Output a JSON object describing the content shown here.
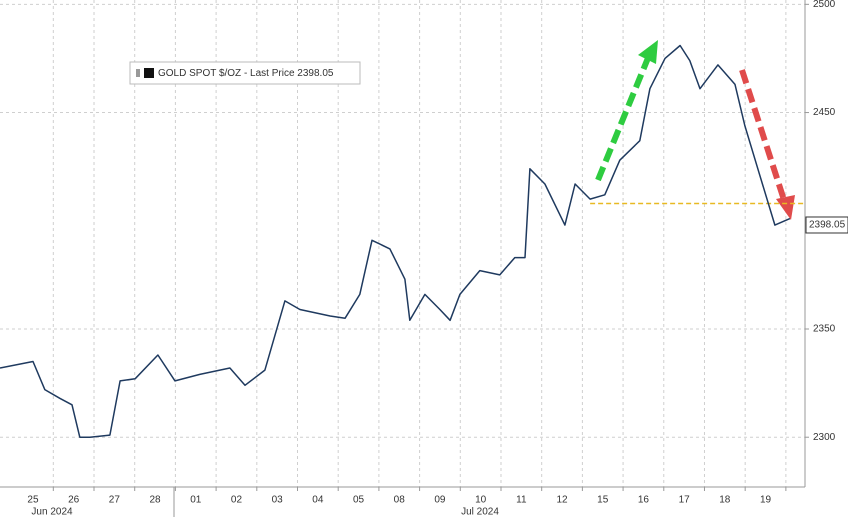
{
  "chart_data": {
    "type": "line",
    "x": [
      -0.81,
      0,
      0.29,
      0.66,
      0.96,
      1.15,
      1.4,
      1.89,
      2.14,
      2.51,
      3.07,
      3.49,
      4.1,
      4.84,
      5.21,
      5.7,
      6.19,
      6.56,
      7.3,
      7.67,
      8.03,
      8.33,
      8.77,
      9.14,
      9.26,
      9.63,
      10.0,
      10.25,
      10.49,
      10.98,
      11.47,
      11.84,
      12.09,
      12.21,
      12.58,
      13.07,
      13.32,
      13.69,
      14.05,
      14.42,
      14.91,
      15.16,
      15.53,
      15.9,
      16.14,
      16.39,
      16.83,
      17.25,
      17.49,
      17.86,
      18.23,
      18.6
    ],
    "series": [
      {
        "name": "GOLD SPOT $/OZ - Last Price 2398.05",
        "color": "#1f3a5f",
        "values": [
          2332,
          2335,
          2322,
          2318,
          2315,
          2300,
          2300,
          2301,
          2326,
          2327,
          2338,
          2326,
          2329,
          2332,
          2324,
          2331,
          2363,
          2359,
          2356,
          2355,
          2366,
          2391,
          2387,
          2373,
          2354,
          2366,
          2359,
          2354,
          2366,
          2377,
          2375,
          2383,
          2383,
          2424,
          2417,
          2398,
          2417,
          2410,
          2412,
          2428,
          2437,
          2461,
          2475,
          2481,
          2474,
          2461,
          2472,
          2463,
          2444,
          2421,
          2398,
          2401
        ]
      }
    ],
    "xlim": [
      -0.81,
      18.97
    ],
    "xticks": [
      {
        "value": 0,
        "label": "25"
      },
      {
        "value": 1,
        "label": "26"
      },
      {
        "value": 2,
        "label": "27"
      },
      {
        "value": 3,
        "label": "28"
      },
      {
        "value": 4,
        "label": "01"
      },
      {
        "value": 5,
        "label": "02"
      },
      {
        "value": 6,
        "label": "03"
      },
      {
        "value": 7,
        "label": "04"
      },
      {
        "value": 8,
        "label": "05"
      },
      {
        "value": 9,
        "label": "08"
      },
      {
        "value": 10,
        "label": "09"
      },
      {
        "value": 11,
        "label": "10"
      },
      {
        "value": 12,
        "label": "11"
      },
      {
        "value": 13,
        "label": "12"
      },
      {
        "value": 14,
        "label": "15"
      },
      {
        "value": 15,
        "label": "16"
      },
      {
        "value": 16,
        "label": "17"
      },
      {
        "value": 17,
        "label": "18"
      },
      {
        "value": 18,
        "label": "19"
      }
    ],
    "month_labels": [
      "Jun 2024",
      "Jul 2024"
    ],
    "ylim": [
      2277,
      2502
    ],
    "yticks": [
      2300,
      2350,
      2450,
      2500
    ],
    "last_price": {
      "value": 2398.05,
      "label": "2398.05"
    },
    "reference_line": {
      "y": 2408,
      "x": [
        13.69,
        18.97
      ],
      "color": "#e8b923"
    },
    "grid": true
  }
}
